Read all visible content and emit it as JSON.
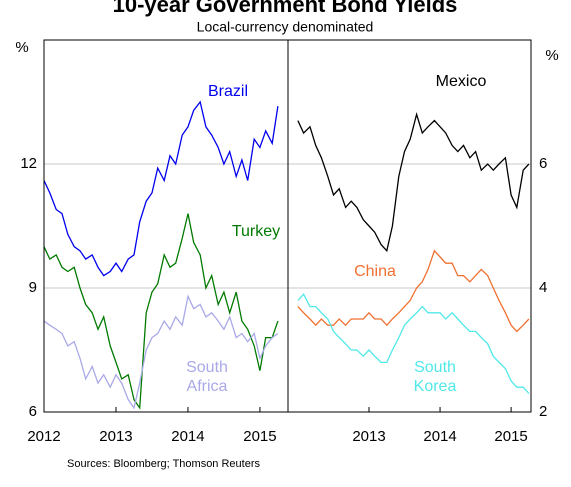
{
  "title": "10-year Government Bond Yields",
  "subtitle": "Local-currency denominated",
  "source": "Sources: Bloomberg; Thomson Reuters",
  "chart_data": [
    {
      "type": "line",
      "ylabel": "%",
      "xlim": [
        2012,
        2015.39
      ],
      "xticks": [
        2012,
        2013,
        2014,
        2015
      ],
      "ylim": [
        6,
        15
      ],
      "yticks": [
        6,
        9,
        12
      ],
      "grid": true,
      "x": [
        2012,
        2012.08,
        2012.17,
        2012.25,
        2012.33,
        2012.42,
        2012.5,
        2012.58,
        2012.67,
        2012.75,
        2012.83,
        2012.92,
        2013,
        2013.08,
        2013.17,
        2013.25,
        2013.33,
        2013.42,
        2013.5,
        2013.58,
        2013.67,
        2013.75,
        2013.83,
        2013.92,
        2014,
        2014.08,
        2014.17,
        2014.25,
        2014.33,
        2014.42,
        2014.5,
        2014.58,
        2014.67,
        2014.75,
        2014.83,
        2014.92,
        2015,
        2015.08,
        2015.17,
        2015.25
      ],
      "series": [
        {
          "name": "Brazil",
          "color": "#0000ee",
          "values": [
            11.6,
            11.3,
            10.9,
            10.8,
            10.3,
            10.0,
            9.9,
            9.7,
            9.8,
            9.5,
            9.3,
            9.4,
            9.6,
            9.4,
            9.7,
            9.8,
            10.6,
            11.1,
            11.3,
            11.9,
            11.6,
            12.2,
            12.0,
            12.7,
            12.9,
            13.3,
            13.5,
            12.9,
            12.7,
            12.4,
            12.0,
            12.3,
            11.7,
            12.1,
            11.6,
            12.6,
            12.4,
            12.8,
            12.5,
            13.4
          ]
        },
        {
          "name": "Turkey",
          "color": "#007a00",
          "values": [
            10.0,
            9.7,
            9.8,
            9.5,
            9.4,
            9.5,
            9.0,
            8.6,
            8.4,
            8.0,
            8.3,
            7.6,
            7.2,
            6.8,
            6.9,
            6.3,
            6.1,
            8.4,
            8.9,
            9.1,
            9.8,
            9.5,
            9.6,
            10.2,
            10.8,
            10.1,
            9.8,
            9.0,
            9.3,
            8.6,
            8.9,
            8.4,
            8.9,
            8.2,
            8.0,
            7.6,
            7.0,
            7.8,
            7.8,
            8.2
          ]
        },
        {
          "name": "South Africa",
          "color": "#a9a9e8",
          "values": [
            8.2,
            8.1,
            8.0,
            7.9,
            7.6,
            7.7,
            7.3,
            6.8,
            7.1,
            6.7,
            6.9,
            6.6,
            6.9,
            6.7,
            6.3,
            6.1,
            6.7,
            7.5,
            7.8,
            7.9,
            8.2,
            8.0,
            8.3,
            8.1,
            8.8,
            8.5,
            8.6,
            8.3,
            8.4,
            8.2,
            8.0,
            8.3,
            7.8,
            7.9,
            7.7,
            7.9,
            7.3,
            7.6,
            7.8,
            7.9
          ]
        }
      ]
    },
    {
      "type": "line",
      "ylabel": "%",
      "xlim": [
        2011.86,
        2015.28
      ],
      "xticks": [
        2013,
        2014,
        2015
      ],
      "ylim": [
        2,
        8
      ],
      "yticks": [
        2,
        4,
        6
      ],
      "grid": true,
      "x": [
        2012,
        2012.08,
        2012.17,
        2012.25,
        2012.33,
        2012.42,
        2012.5,
        2012.58,
        2012.67,
        2012.75,
        2012.83,
        2012.92,
        2013,
        2013.08,
        2013.17,
        2013.25,
        2013.33,
        2013.42,
        2013.5,
        2013.58,
        2013.67,
        2013.75,
        2013.83,
        2013.92,
        2014,
        2014.08,
        2014.17,
        2014.25,
        2014.33,
        2014.42,
        2014.5,
        2014.58,
        2014.67,
        2014.75,
        2014.83,
        2014.92,
        2015,
        2015.08,
        2015.17,
        2015.25
      ],
      "series": [
        {
          "name": "Mexico",
          "color": "#000000",
          "values": [
            6.7,
            6.5,
            6.6,
            6.3,
            6.1,
            5.8,
            5.5,
            5.6,
            5.3,
            5.4,
            5.3,
            5.1,
            5.0,
            4.9,
            4.7,
            4.6,
            5.0,
            5.8,
            6.2,
            6.4,
            6.8,
            6.5,
            6.6,
            6.7,
            6.6,
            6.5,
            6.3,
            6.2,
            6.3,
            6.1,
            6.2,
            5.9,
            6.0,
            5.9,
            6.0,
            6.1,
            5.5,
            5.3,
            5.9,
            6.0
          ]
        },
        {
          "name": "China",
          "color": "#f07030",
          "values": [
            3.7,
            3.6,
            3.5,
            3.4,
            3.5,
            3.4,
            3.4,
            3.5,
            3.4,
            3.5,
            3.5,
            3.5,
            3.6,
            3.5,
            3.5,
            3.4,
            3.5,
            3.6,
            3.7,
            3.8,
            4.0,
            4.1,
            4.3,
            4.6,
            4.5,
            4.4,
            4.4,
            4.2,
            4.2,
            4.1,
            4.2,
            4.3,
            4.2,
            4.0,
            3.8,
            3.6,
            3.4,
            3.3,
            3.4,
            3.5
          ]
        },
        {
          "name": "South Korea",
          "color": "#50e8e8",
          "values": [
            3.8,
            3.9,
            3.7,
            3.7,
            3.6,
            3.5,
            3.3,
            3.2,
            3.1,
            3.0,
            3.0,
            2.9,
            3.0,
            2.9,
            2.8,
            2.8,
            3.0,
            3.2,
            3.4,
            3.5,
            3.6,
            3.7,
            3.6,
            3.6,
            3.6,
            3.5,
            3.6,
            3.5,
            3.4,
            3.3,
            3.3,
            3.2,
            3.1,
            2.9,
            2.8,
            2.7,
            2.5,
            2.4,
            2.4,
            2.3
          ]
        }
      ]
    }
  ]
}
